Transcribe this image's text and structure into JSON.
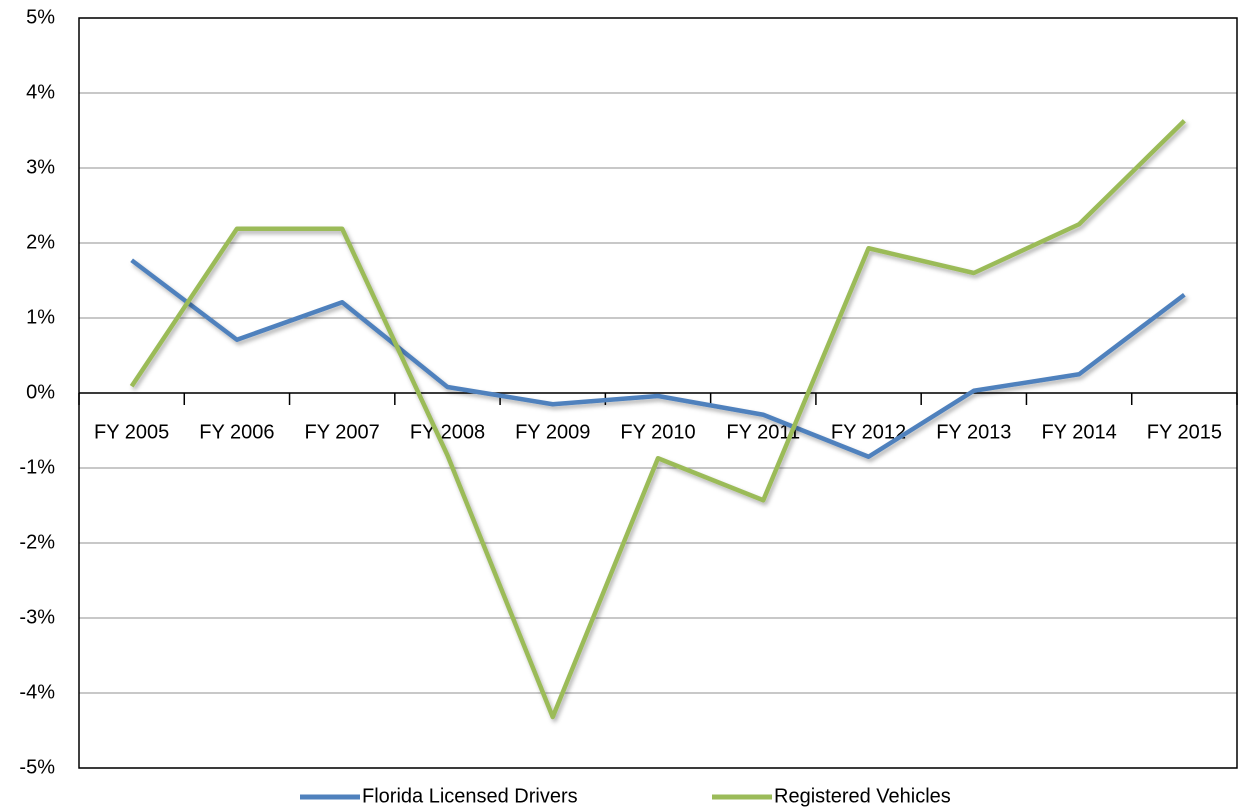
{
  "chart_data": {
    "type": "line",
    "categories": [
      "FY 2005",
      "FY 2006",
      "FY 2007",
      "FY 2008",
      "FY 2009",
      "FY 2010",
      "FY 2011",
      "FY 2012",
      "FY 2013",
      "FY 2014",
      "FY 2015"
    ],
    "series": [
      {
        "name": "Florida Licensed Drivers",
        "color": "#4f81bd",
        "values": [
          1.77,
          0.71,
          1.21,
          0.08,
          -0.15,
          -0.04,
          -0.29,
          -0.85,
          0.03,
          0.25,
          1.31
        ]
      },
      {
        "name": "Registered Vehicles",
        "color": "#9bbb59",
        "values": [
          0.09,
          2.19,
          2.19,
          -0.83,
          -4.32,
          -0.87,
          -1.43,
          1.93,
          1.6,
          2.25,
          3.63
        ]
      }
    ],
    "ylim": [
      -5,
      5
    ],
    "yticks": [
      {
        "value": -5,
        "label": "-5%"
      },
      {
        "value": -4,
        "label": "-4%"
      },
      {
        "value": -3,
        "label": "-3%"
      },
      {
        "value": -2,
        "label": "-2%"
      },
      {
        "value": -1,
        "label": "-1%"
      },
      {
        "value": 0,
        "label": "0%"
      },
      {
        "value": 1,
        "label": "1%"
      },
      {
        "value": 2,
        "label": "2%"
      },
      {
        "value": 3,
        "label": "3%"
      },
      {
        "value": 4,
        "label": "4%"
      },
      {
        "value": 5,
        "label": "5%"
      }
    ],
    "grid": true,
    "legend": "bottom"
  }
}
